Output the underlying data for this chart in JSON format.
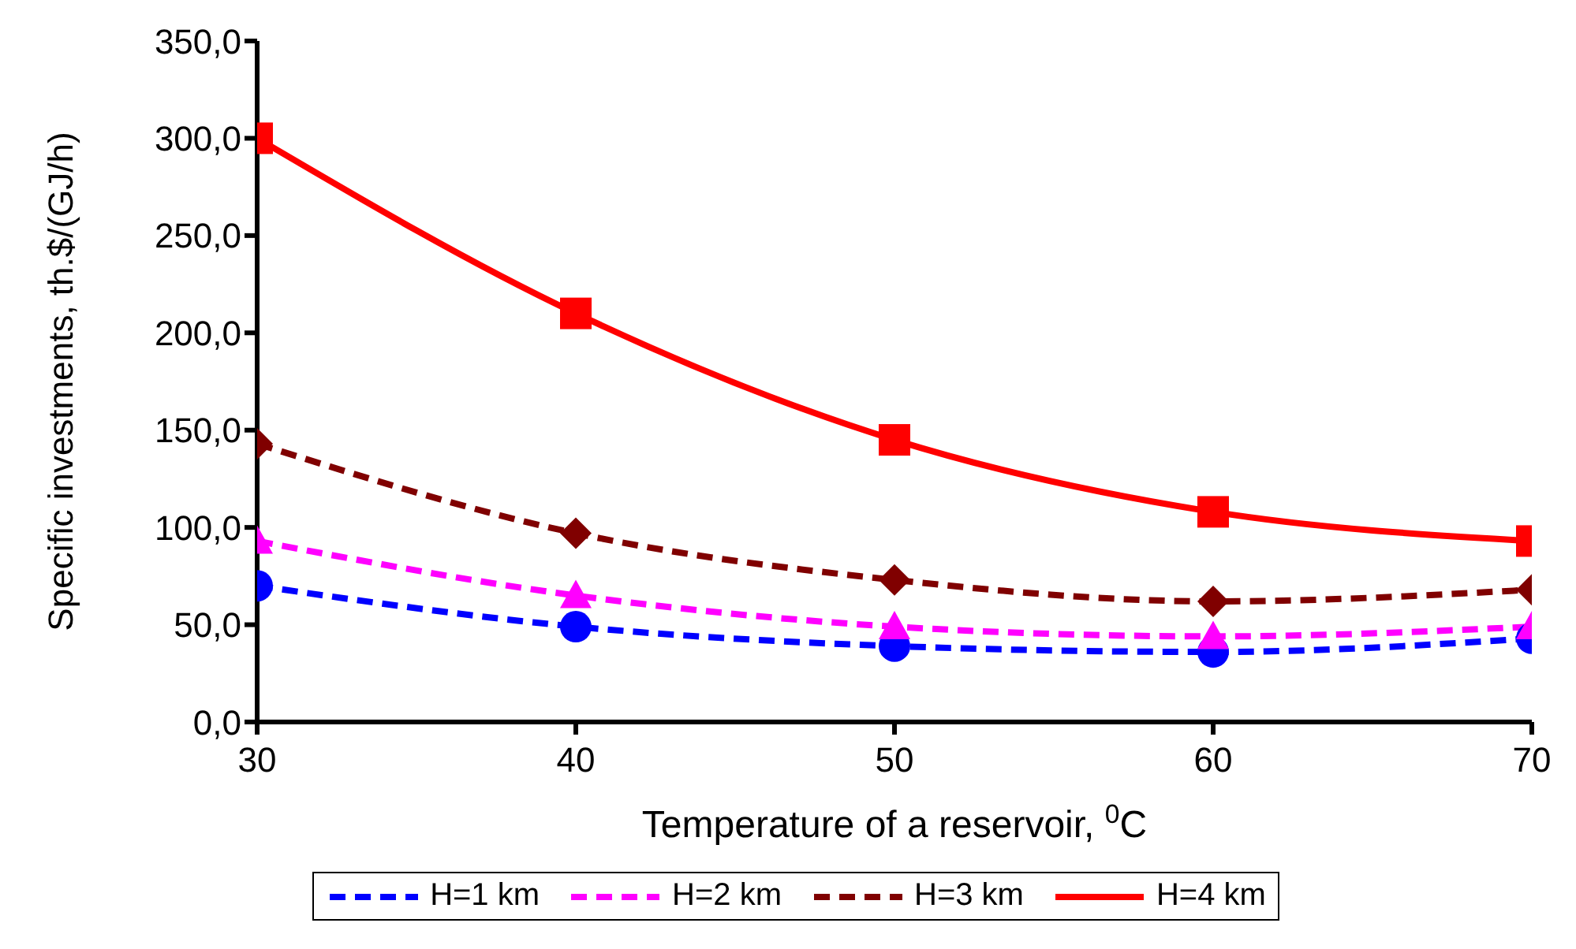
{
  "chart_data": {
    "type": "line",
    "xlabel": "Temperature of a reservoir, $^{0}$C",
    "ylabel": "Specific investments, th.$/(GJ/h)",
    "x": [
      30,
      40,
      50,
      60,
      70
    ],
    "xlim": [
      30,
      70
    ],
    "xticks": [
      30,
      40,
      50,
      60,
      70
    ],
    "ylim": [
      0,
      350
    ],
    "yticks": [
      {
        "value": 0,
        "label": "0,0"
      },
      {
        "value": 50,
        "label": "50,0"
      },
      {
        "value": 100,
        "label": "100,0"
      },
      {
        "value": 150,
        "label": "150,0"
      },
      {
        "value": 200,
        "label": "200,0"
      },
      {
        "value": 250,
        "label": "250,0"
      },
      {
        "value": 300,
        "label": "300,0"
      },
      {
        "value": 350,
        "label": "350,0"
      }
    ],
    "grid": false,
    "legend": "bottom",
    "series": [
      {
        "name": "H=1 km",
        "color": "#0000ff",
        "marker": "circle",
        "line_style": "dashed",
        "values": [
          70,
          49,
          39,
          36,
          43
        ]
      },
      {
        "name": "H=2 km",
        "color": "#ff00ff",
        "marker": "triangle",
        "line_style": "dashed",
        "values": [
          93,
          65,
          49,
          44,
          49
        ]
      },
      {
        "name": "H=3 km",
        "color": "#800000",
        "marker": "diamond",
        "line_style": "dashed",
        "values": [
          143,
          97,
          73,
          62,
          68
        ]
      },
      {
        "name": "H=4 km",
        "color": "#ff0000",
        "marker": "square",
        "line_style": "solid",
        "values": [
          300,
          210,
          145,
          108,
          93
        ]
      }
    ]
  }
}
